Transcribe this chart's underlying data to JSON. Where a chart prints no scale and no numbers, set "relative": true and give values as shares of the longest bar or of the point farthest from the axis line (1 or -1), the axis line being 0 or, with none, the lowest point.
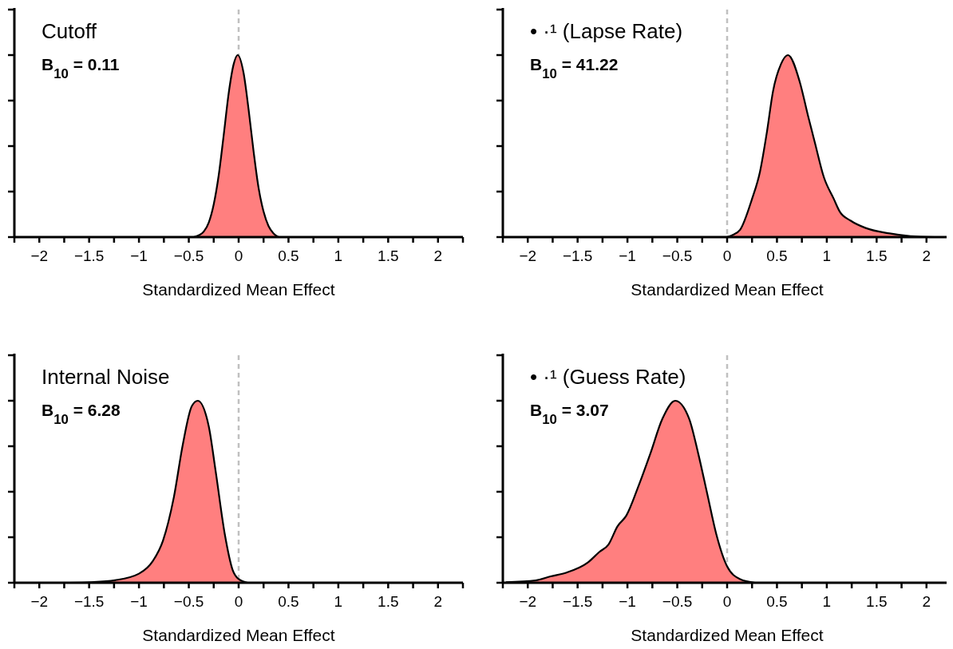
{
  "chart_data": [
    {
      "type": "area",
      "title": "Cutoff",
      "annotations": [
        "B$_{10}$ = 0.11"
      ],
      "xlabel": "Standardized Mean Effect",
      "relative": true,
      "tick_labels": "x",
      "grid": false,
      "xlim": [
        -2.25,
        2.25
      ],
      "xticks": [
        {
          "value": -2.25,
          "label": null
        },
        -2,
        {
          "value": -1.75,
          "label": null
        },
        -1.5,
        {
          "value": -1.25,
          "label": null
        },
        -1,
        {
          "value": -0.75,
          "label": null
        },
        -0.5,
        {
          "value": -0.25,
          "label": null
        },
        0,
        {
          "value": 0.25,
          "label": null
        },
        0.5,
        {
          "value": 0.75,
          "label": null
        },
        1,
        {
          "value": 1.25,
          "label": null
        },
        1.5,
        {
          "value": 1.75,
          "label": null
        },
        2,
        {
          "value": 2.25,
          "label": null
        }
      ],
      "ref_lines": [
        {
          "axis": "x",
          "value": 0,
          "color": "#c0c0c0",
          "line_style": "dashed"
        }
      ],
      "series": [
        {
          "color": "#ff7f7f",
          "x": [
            -0.45,
            -0.4,
            -0.35,
            -0.3,
            -0.25,
            -0.2,
            -0.15,
            -0.1,
            -0.05,
            -0.01,
            0.05,
            0.1,
            0.15,
            0.2,
            0.25,
            0.3,
            0.35,
            0.4
          ],
          "values": [
            0,
            0.01,
            0.03,
            0.08,
            0.18,
            0.34,
            0.56,
            0.79,
            0.95,
            1,
            0.9,
            0.7,
            0.47,
            0.27,
            0.14,
            0.06,
            0.02,
            0
          ]
        }
      ]
    },
    {
      "type": "area",
      "title": "• ·¹ (Lapse Rate)",
      "annotations": [
        "B$_{10}$ = 41.22"
      ],
      "xlabel": "Standardized Mean Effect",
      "relative": true,
      "tick_labels": "x",
      "grid": false,
      "xlim": [
        -2.25,
        2.25
      ],
      "xticks": [
        {
          "value": -2.25,
          "label": null
        },
        -2,
        {
          "value": -1.75,
          "label": null
        },
        -1.5,
        {
          "value": -1.25,
          "label": null
        },
        -1,
        {
          "value": -0.75,
          "label": null
        },
        -0.5,
        {
          "value": -0.25,
          "label": null
        },
        0,
        {
          "value": 0.25,
          "label": null
        },
        0.5,
        {
          "value": 0.75,
          "label": null
        },
        1,
        {
          "value": 1.25,
          "label": null
        },
        1.5,
        {
          "value": 1.75,
          "label": null
        },
        2,
        {
          "value": 2.25,
          "label": null
        }
      ],
      "ref_lines": [
        {
          "axis": "x",
          "value": 0,
          "color": "#c0c0c0",
          "line_style": "dashed"
        }
      ],
      "series": [
        {
          "color": "#ff7f7f",
          "x": [
            0,
            0.05,
            0.13,
            0.25,
            0.33,
            0.4,
            0.46,
            0.54,
            0.61,
            0.73,
            0.81,
            0.88,
            0.97,
            1.07,
            1.13,
            1.24,
            1.39,
            1.63,
            1.84,
            2.08
          ],
          "values": [
            0,
            0.01,
            0.04,
            0.21,
            0.36,
            0.58,
            0.8,
            0.95,
            1,
            0.85,
            0.67,
            0.52,
            0.33,
            0.21,
            0.14,
            0.09,
            0.05,
            0.02,
            0.005,
            0
          ]
        }
      ]
    },
    {
      "type": "area",
      "title": "Internal Noise",
      "annotations": [
        "B$_{10}$ = 6.28"
      ],
      "xlabel": "Standardized Mean Effect",
      "relative": true,
      "tick_labels": "x",
      "grid": false,
      "xlim": [
        -2.25,
        2.25
      ],
      "xticks": [
        {
          "value": -2.25,
          "label": null
        },
        -2,
        {
          "value": -1.75,
          "label": null
        },
        -1.5,
        {
          "value": -1.25,
          "label": null
        },
        -1,
        {
          "value": -0.75,
          "label": null
        },
        -0.5,
        {
          "value": -0.25,
          "label": null
        },
        0,
        {
          "value": 0.25,
          "label": null
        },
        0.5,
        {
          "value": 0.75,
          "label": null
        },
        1,
        {
          "value": 1.25,
          "label": null
        },
        1.5,
        {
          "value": 1.75,
          "label": null
        },
        2,
        {
          "value": 2.25,
          "label": null
        }
      ],
      "ref_lines": [
        {
          "axis": "x",
          "value": 0,
          "color": "#c0c0c0",
          "line_style": "dashed"
        }
      ],
      "series": [
        {
          "color": "#ff7f7f",
          "x": [
            -1.7,
            -1.48,
            -1.24,
            -1.0,
            -0.86,
            -0.76,
            -0.65,
            -0.56,
            -0.47,
            -0.41,
            -0.3,
            -0.23,
            -0.14,
            -0.06,
            0,
            0.09
          ],
          "values": [
            0,
            0.003,
            0.014,
            0.05,
            0.12,
            0.23,
            0.47,
            0.76,
            0.97,
            1,
            0.86,
            0.61,
            0.27,
            0.07,
            0.02,
            0
          ]
        }
      ]
    },
    {
      "type": "area",
      "title": "• ·¹ (Guess Rate)",
      "annotations": [
        "B$_{10}$ = 3.07"
      ],
      "xlabel": "Standardized Mean Effect",
      "relative": true,
      "tick_labels": "x",
      "grid": false,
      "xlim": [
        -2.25,
        2.25
      ],
      "xticks": [
        {
          "value": -2.25,
          "label": null
        },
        -2,
        {
          "value": -1.75,
          "label": null
        },
        -1.5,
        {
          "value": -1.25,
          "label": null
        },
        -1,
        {
          "value": -0.75,
          "label": null
        },
        -0.5,
        {
          "value": -0.25,
          "label": null
        },
        0,
        {
          "value": 0.25,
          "label": null
        },
        0.5,
        {
          "value": 0.75,
          "label": null
        },
        1,
        {
          "value": 1.25,
          "label": null
        },
        1.5,
        {
          "value": 1.75,
          "label": null
        },
        2,
        {
          "value": 2.25,
          "label": null
        }
      ],
      "ref_lines": [
        {
          "axis": "x",
          "value": 0,
          "color": "#c0c0c0",
          "line_style": "dashed"
        }
      ],
      "series": [
        {
          "color": "#ff7f7f",
          "x": [
            -2.22,
            -1.92,
            -1.77,
            -1.61,
            -1.4,
            -1.28,
            -1.19,
            -1.1,
            -1.01,
            -0.89,
            -0.77,
            -0.65,
            -0.52,
            -0.38,
            -0.29,
            -0.2,
            -0.11,
            0,
            0.13,
            0.28
          ],
          "values": [
            0.003,
            0.013,
            0.035,
            0.056,
            0.11,
            0.17,
            0.21,
            0.31,
            0.37,
            0.53,
            0.71,
            0.9,
            1,
            0.9,
            0.71,
            0.49,
            0.27,
            0.09,
            0.02,
            0
          ]
        }
      ]
    }
  ]
}
